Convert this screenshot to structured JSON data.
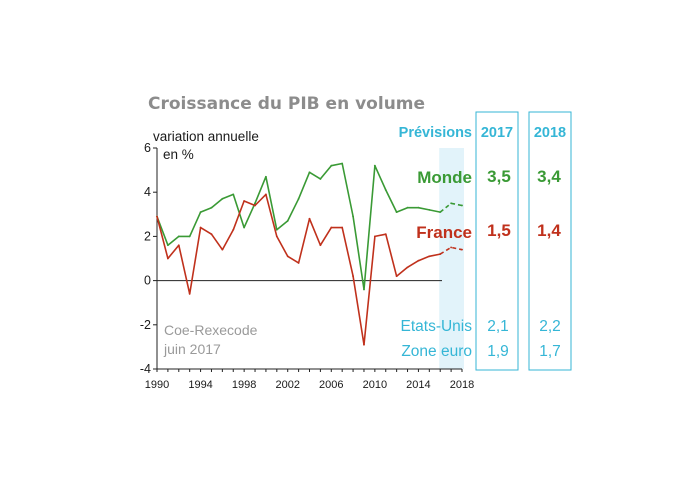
{
  "chart_data": {
    "type": "line",
    "title": "Croissance du PIB en volume",
    "ylabel": "variation annuelle en %",
    "ylim": [
      -4,
      6
    ],
    "yticks": [
      "6",
      "4",
      "2",
      "0",
      "-2",
      "-4"
    ],
    "xlim": [
      1990,
      2018
    ],
    "xticks": [
      "1990",
      "1994",
      "1998",
      "2002",
      "2006",
      "2010",
      "2014",
      "2018"
    ],
    "x": [
      1990,
      1991,
      1992,
      1993,
      1994,
      1995,
      1996,
      1997,
      1998,
      1999,
      2000,
      2001,
      2002,
      2003,
      2004,
      2005,
      2006,
      2007,
      2008,
      2009,
      2010,
      2011,
      2012,
      2013,
      2014,
      2015,
      2016,
      2017,
      2018
    ],
    "series": [
      {
        "name": "Monde",
        "color": "#3a9a35",
        "values": [
          2.9,
          1.6,
          2.0,
          2.0,
          3.1,
          3.3,
          3.7,
          3.9,
          2.4,
          3.5,
          4.7,
          2.3,
          2.7,
          3.7,
          4.9,
          4.6,
          5.2,
          5.3,
          2.9,
          -0.4,
          5.2,
          4.1,
          3.1,
          3.3,
          3.3,
          3.2,
          3.1,
          3.5,
          3.4
        ],
        "forecast_from": 2016
      },
      {
        "name": "France",
        "color": "#c0311c",
        "values": [
          2.9,
          1.0,
          1.6,
          -0.6,
          2.4,
          2.1,
          1.4,
          2.3,
          3.6,
          3.4,
          3.9,
          2.0,
          1.1,
          0.8,
          2.8,
          1.6,
          2.4,
          2.4,
          0.2,
          -2.9,
          2.0,
          2.1,
          0.2,
          0.6,
          0.9,
          1.1,
          1.2,
          1.5,
          1.4
        ],
        "forecast_from": 2016
      }
    ],
    "forecast_band": [
      2016,
      2018
    ],
    "band_color": "#e2f3fa",
    "grid": false
  },
  "annotations": {
    "source_line1": "Coe-Rexecode",
    "source_line2": "juin 2017"
  },
  "forecast_table": {
    "header_label": "Prévisions",
    "year_2017": "2017",
    "year_2018": "2018",
    "accent_color": "#35b6d6",
    "rows": [
      {
        "label": "Monde",
        "v2017": "3,5",
        "v2018": "3,4",
        "color": "#3a9a35"
      },
      {
        "label": "France",
        "v2017": "1,5",
        "v2018": "1,4",
        "color": "#c0311c"
      },
      {
        "label": "Etats-Unis",
        "v2017": "2,1",
        "v2018": "2,2",
        "color": "#35b6d6"
      },
      {
        "label": "Zone euro",
        "v2017": "1,9",
        "v2018": "1,7",
        "color": "#35b6d6"
      }
    ]
  }
}
